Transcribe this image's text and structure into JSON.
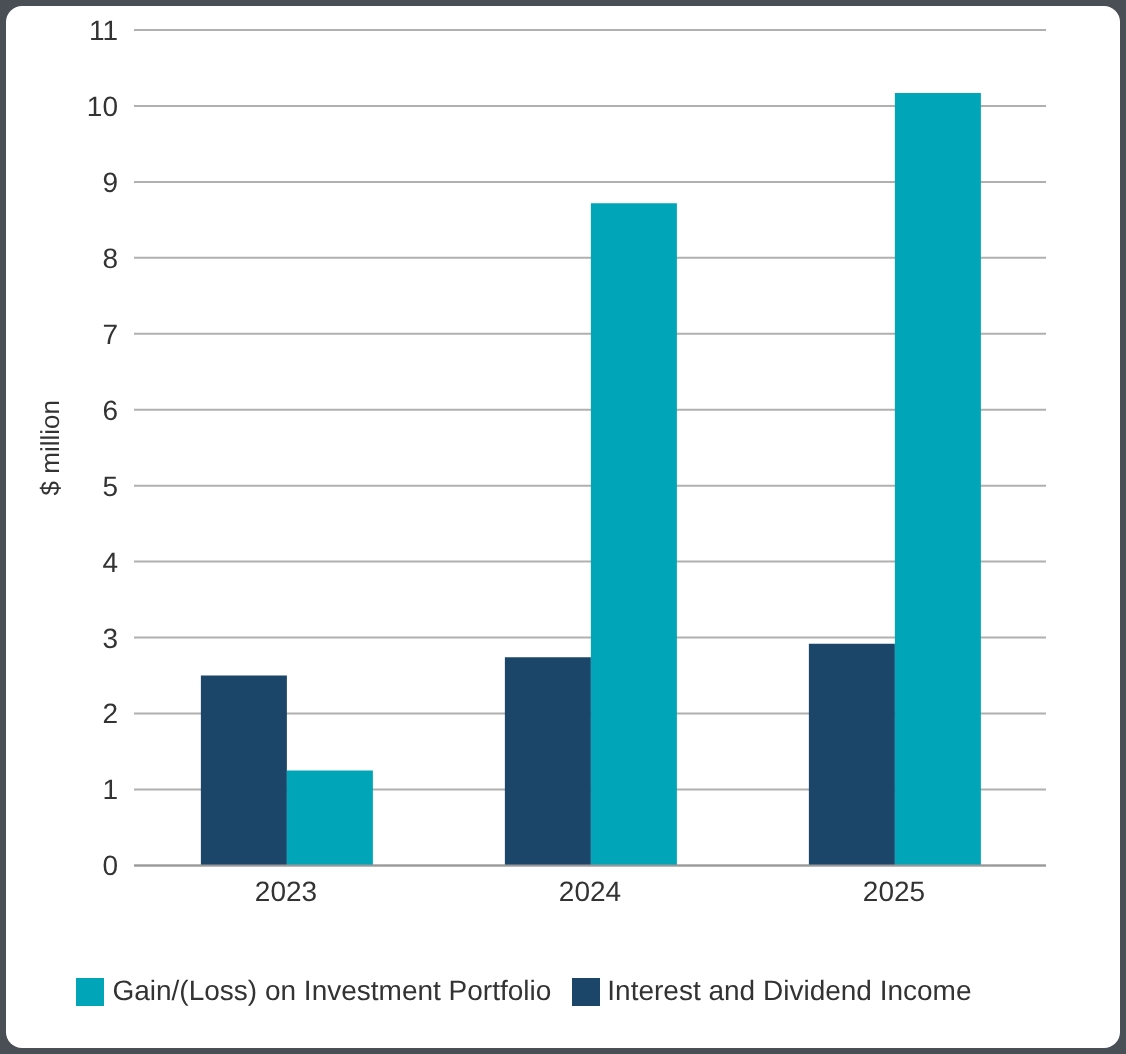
{
  "chart_data": {
    "type": "bar",
    "ylabel": "$ million",
    "categories": [
      "2023",
      "2024",
      "2025"
    ],
    "series": [
      {
        "name": "Interest and Dividend Income",
        "color": "#1b4669",
        "values": [
          2.5,
          2.74,
          2.92
        ]
      },
      {
        "name": "Gain/(Loss) on Investment Portfolio",
        "color": "#00a5b8",
        "values": [
          1.25,
          8.72,
          10.17
        ]
      }
    ],
    "ylim": [
      0,
      11
    ],
    "yticks": [
      0,
      1,
      2,
      3,
      4,
      5,
      6,
      7,
      8,
      9,
      10,
      11
    ],
    "grid": "y",
    "legend": "bottom"
  }
}
